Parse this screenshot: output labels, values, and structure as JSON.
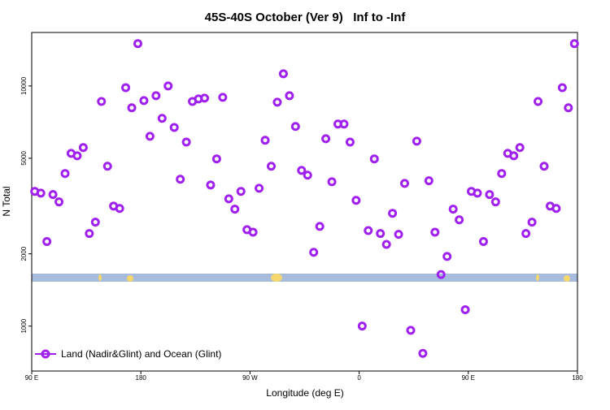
{
  "chart_data": {
    "type": "scatter",
    "title": "45S-40S October (Ver 9)   Inf to -Inf",
    "x_label": "Longitude (deg E)",
    "y_label": "N Total",
    "log_y": true,
    "legend": "lower left",
    "xlim": [
      90,
      540
    ],
    "xticks": [
      {
        "value": 90,
        "label": "90 E"
      },
      {
        "value": 180,
        "label": "180"
      },
      {
        "value": 270,
        "label": "90 W"
      },
      {
        "value": 360,
        "label": "0"
      },
      {
        "value": 450,
        "label": "90 E"
      },
      {
        "value": 540,
        "label": "180"
      }
    ],
    "ylim": [
      650,
      16700
    ],
    "yticks": [
      1000,
      2000,
      5000,
      10000
    ],
    "series": [
      {
        "name": "Land (Nadir&Glint) and Ocean (Glint)",
        "color": "#a020f0",
        "x": [
          92.5,
          97.5,
          102.5,
          107.5,
          112.5,
          117.5,
          122.5,
          127.5,
          132.5,
          137.5,
          142.5,
          147.5,
          152.5,
          157.5,
          162.5,
          167.5,
          172.5,
          177.5,
          182.5,
          187.5,
          192.5,
          197.5,
          202.5,
          207.5,
          212.5,
          217.5,
          222.5,
          227.5,
          232.5,
          237.5,
          242.5,
          247.5,
          252.5,
          257.5,
          262.5,
          267.5,
          272.5,
          277.5,
          282.5,
          287.5,
          292.5,
          297.5,
          302.5,
          307.5,
          312.5,
          317.5,
          322.5,
          327.5,
          332.5,
          337.5,
          342.5,
          347.5,
          352.5,
          357.5,
          362.5,
          367.5,
          372.5,
          377.5,
          382.5,
          387.5,
          392.5,
          397.5,
          402.5,
          407.5,
          412.5,
          417.5,
          422.5,
          427.5,
          432.5,
          437.5,
          442.5,
          447.5,
          452.5,
          457.5,
          462.5,
          467.5,
          472.5,
          477.5,
          482.5,
          487.5,
          492.5,
          497.5,
          502.5,
          507.5,
          512.5,
          517.5,
          522.5,
          527.5,
          532.5,
          537.5
        ],
        "values": [
          3640,
          3580,
          2250,
          3530,
          3290,
          4320,
          5240,
          5120,
          5540,
          2430,
          2710,
          8620,
          4630,
          3160,
          3090,
          9840,
          8110,
          15000,
          8690,
          6170,
          9110,
          7330,
          10000,
          6720,
          4090,
          5840,
          8620,
          8830,
          8900,
          3870,
          4970,
          8970,
          3390,
          3070,
          3640,
          2520,
          2460,
          3750,
          5940,
          4630,
          8560,
          11240,
          9110,
          6780,
          4450,
          4250,
          2030,
          2600,
          6030,
          3990,
          6940,
          6940,
          5840,
          3340,
          1000,
          2500,
          4970,
          2430,
          2190,
          2950,
          2410,
          3930,
          960,
          5890,
          770,
          4030,
          2460,
          1640,
          1950,
          3070,
          2770,
          1170,
          3640,
          3580,
          2250,
          3530,
          3290,
          4320,
          5240,
          5120,
          5540,
          2430,
          2710,
          8620,
          4630,
          3160,
          3090,
          9840,
          8110,
          15000
        ]
      }
    ]
  }
}
